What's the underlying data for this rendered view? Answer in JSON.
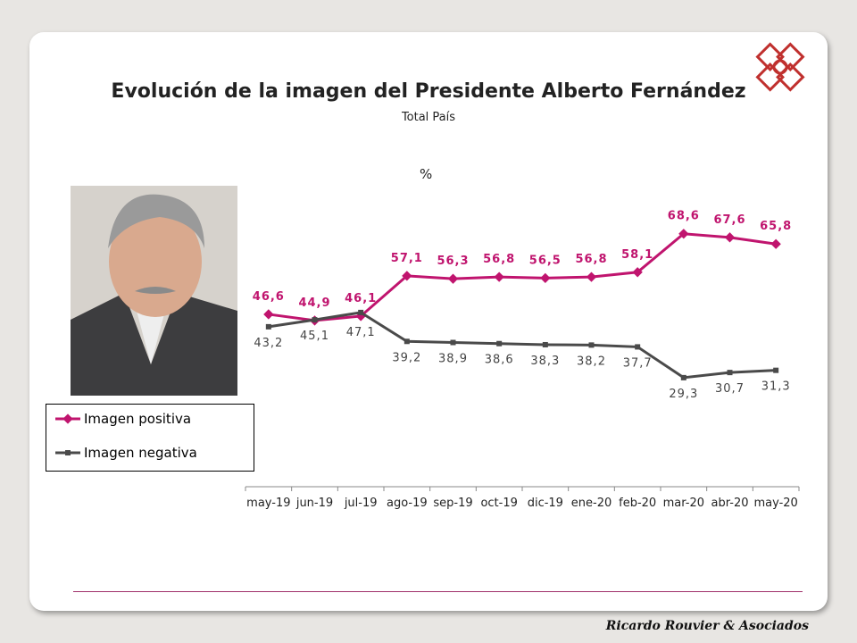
{
  "chart_data": {
    "type": "line",
    "title": "Evolución de la imagen del Presidente Alberto Fernández",
    "subtitle": "Total País",
    "ylabel": "%",
    "ylim": [
      0,
      80
    ],
    "categories": [
      "may-19",
      "jun-19",
      "jul-19",
      "ago-19",
      "sep-19",
      "oct-19",
      "dic-19",
      "ene-20",
      "feb-20",
      "mar-20",
      "abr-20",
      "may-20"
    ],
    "series": [
      {
        "name": "Imagen positiva",
        "color": "#c0146e",
        "values": [
          46.6,
          44.9,
          46.1,
          57.1,
          56.3,
          56.8,
          56.5,
          56.8,
          58.1,
          68.6,
          67.6,
          65.8
        ],
        "labels": [
          "46,6",
          "44,9",
          "46,1",
          "57,1",
          "56,3",
          "56,8",
          "56,5",
          "56,8",
          "58,1",
          "68,6",
          "67,6",
          "65,8"
        ]
      },
      {
        "name": "Imagen negativa",
        "color": "#4a4a4a",
        "values": [
          43.2,
          45.1,
          47.1,
          39.2,
          38.9,
          38.6,
          38.3,
          38.2,
          37.7,
          29.3,
          30.7,
          31.3
        ],
        "labels": [
          "43,2",
          "45,1",
          "47,1",
          "39,2",
          "38,9",
          "38,6",
          "38,3",
          "38,2",
          "37,7",
          "29,3",
          "30,7",
          "31,3"
        ]
      }
    ],
    "legend": "left",
    "grid": false
  },
  "footer": "Ricardo Rouvier & Asociados",
  "logo_color": "#c0302e"
}
